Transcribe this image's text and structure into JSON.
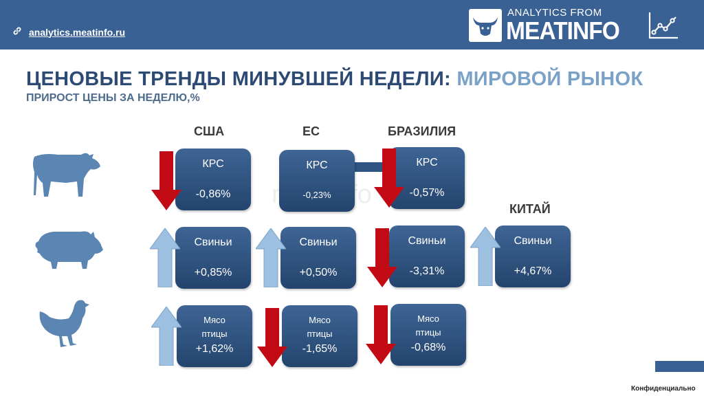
{
  "header": {
    "link_text": "analytics.meatinfo.ru",
    "logo_small": "ANALYTICS FROM",
    "logo_big": "MEATINFO"
  },
  "title": {
    "main": "ЦЕНОВЫЕ ТРЕНДЫ МИНУВШЕЙ НЕДЕЛИ: ",
    "highlight": "МИРОВОЙ РЫНОК"
  },
  "subtitle": "ПРИРОСТ ЦЕНЫ ЗА НЕДЕЛЮ,%",
  "columns": {
    "usa": "США",
    "eu": "ЕС",
    "brazil": "БРАЗИЛИЯ",
    "china": "КИТАЙ"
  },
  "cards": {
    "usa_cattle": {
      "label": "КРС",
      "value": "-0,86%",
      "trend": "down"
    },
    "eu_cattle": {
      "label": "КРС",
      "value": "-0,23%",
      "trend": "none"
    },
    "br_cattle": {
      "label": "КРС",
      "value": "-0,57%",
      "trend": "down"
    },
    "usa_pork": {
      "label": "Свиньи",
      "value": "+0,85%",
      "trend": "up"
    },
    "eu_pork": {
      "label": "Свиньи",
      "value": "+0,50%",
      "trend": "up"
    },
    "br_pork": {
      "label": "Свиньи",
      "value": "-3,31%",
      "trend": "down"
    },
    "cn_pork": {
      "label": "Свиньи",
      "value": "+4,67%",
      "trend": "up"
    },
    "usa_poultry": {
      "label": "Мясо птицы",
      "value": "+1,62%",
      "trend": "up"
    },
    "eu_poultry": {
      "label": "Мясо птицы",
      "value": "-1,65%",
      "trend": "down"
    },
    "br_poultry": {
      "label": "Мясо птицы",
      "value": "-0,68%",
      "trend": "down"
    }
  },
  "watermark": "meatinfo",
  "footer": {
    "confidential": "Конфиденциально"
  },
  "colors": {
    "header": "#3a6194",
    "card": "#2f5682",
    "up_arrow": "#9dc0e0",
    "down_arrow": "#c20a14",
    "title": "#2c4a73",
    "title_highlight": "#7aa2c8"
  },
  "icons": [
    "link-icon",
    "bull-logo-icon",
    "line-chart-icon",
    "cow-icon",
    "pig-icon",
    "chicken-icon",
    "arrow-up-icon",
    "arrow-down-icon"
  ]
}
